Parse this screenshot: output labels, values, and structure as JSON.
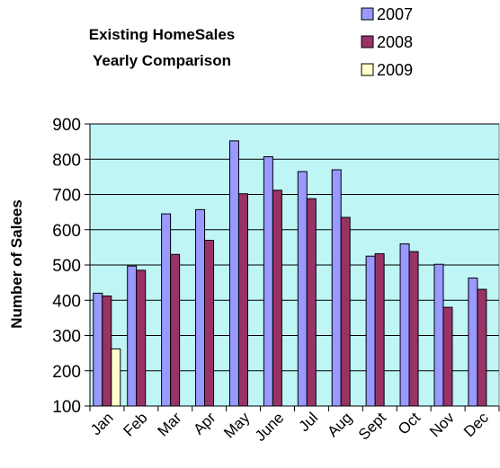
{
  "chart_data": {
    "type": "bar",
    "title_lines": [
      "Existing HomeSales",
      "Yearly Comparison"
    ],
    "xlabel": "",
    "ylabel": "Number of Salees",
    "ylim": [
      100,
      900
    ],
    "yticks": [
      100,
      200,
      300,
      400,
      500,
      600,
      700,
      800,
      900
    ],
    "grid": true,
    "legend_position": "top-right",
    "plot_background": "#BFF5F5",
    "categories": [
      "Jan",
      "Feb",
      "Mar",
      "Apr",
      "May",
      "June",
      "Jul",
      "Aug",
      "Sept",
      "Oct",
      "Nov",
      "Dec"
    ],
    "series": [
      {
        "name": "2007",
        "color": "#9999FF",
        "values": [
          420,
          497,
          645,
          657,
          852,
          807,
          765,
          770,
          525,
          560,
          502,
          463
        ]
      },
      {
        "name": "2008",
        "color": "#993366",
        "values": [
          412,
          485,
          530,
          570,
          702,
          712,
          688,
          635,
          532,
          538,
          380,
          431
        ]
      },
      {
        "name": "2009",
        "color": "#FFFFCC",
        "values": [
          262,
          null,
          null,
          null,
          null,
          null,
          null,
          null,
          null,
          null,
          null,
          null
        ]
      }
    ]
  }
}
